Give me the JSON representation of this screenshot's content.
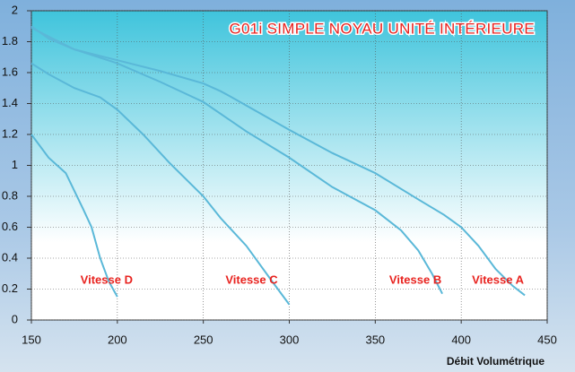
{
  "chart_data": {
    "type": "line",
    "title": "G01i SIMPLE NOYAU UNITÉ INTÉRIEURE",
    "x_label": "Débit Volumétrique",
    "xlim": [
      150,
      450
    ],
    "ylim": [
      0,
      2
    ],
    "xticks": [
      150,
      200,
      250,
      300,
      350,
      400,
      450
    ],
    "yticks": [
      0,
      0.2,
      0.4,
      0.6,
      0.8,
      1,
      1.2,
      1.4,
      1.6,
      1.8,
      2
    ],
    "grid": true,
    "series": [
      {
        "name": "Vitesse D",
        "color": "#5ab8d8",
        "x": [
          150,
          160,
          170,
          180,
          185,
          190,
          195,
          200
        ],
        "values": [
          1.2,
          1.05,
          0.95,
          0.72,
          0.6,
          0.4,
          0.25,
          0.15
        ]
      },
      {
        "name": "Vitesse C",
        "color": "#5ab8d8",
        "x": [
          150,
          160,
          175,
          190,
          200,
          215,
          230,
          250,
          260,
          275,
          290,
          300
        ],
        "values": [
          1.66,
          1.59,
          1.5,
          1.44,
          1.36,
          1.2,
          1.02,
          0.8,
          0.66,
          0.48,
          0.25,
          0.1
        ]
      },
      {
        "name": "Vitesse B",
        "color": "#5ab8d8",
        "x": [
          150,
          175,
          200,
          225,
          250,
          275,
          300,
          325,
          350,
          365,
          375,
          383,
          389
        ],
        "values": [
          1.89,
          1.75,
          1.66,
          1.54,
          1.41,
          1.22,
          1.05,
          0.86,
          0.71,
          0.58,
          0.45,
          0.3,
          0.17
        ]
      },
      {
        "name": "Vitesse A",
        "color": "#5ab8d8",
        "x": [
          150,
          160,
          175,
          200,
          225,
          250,
          260,
          265,
          300,
          325,
          350,
          375,
          390,
          400,
          410,
          420,
          430,
          437
        ],
        "values": [
          1.9,
          1.82,
          1.75,
          1.68,
          1.61,
          1.53,
          1.48,
          1.45,
          1.23,
          1.08,
          0.95,
          0.78,
          0.68,
          0.6,
          0.48,
          0.33,
          0.22,
          0.16
        ]
      }
    ]
  }
}
